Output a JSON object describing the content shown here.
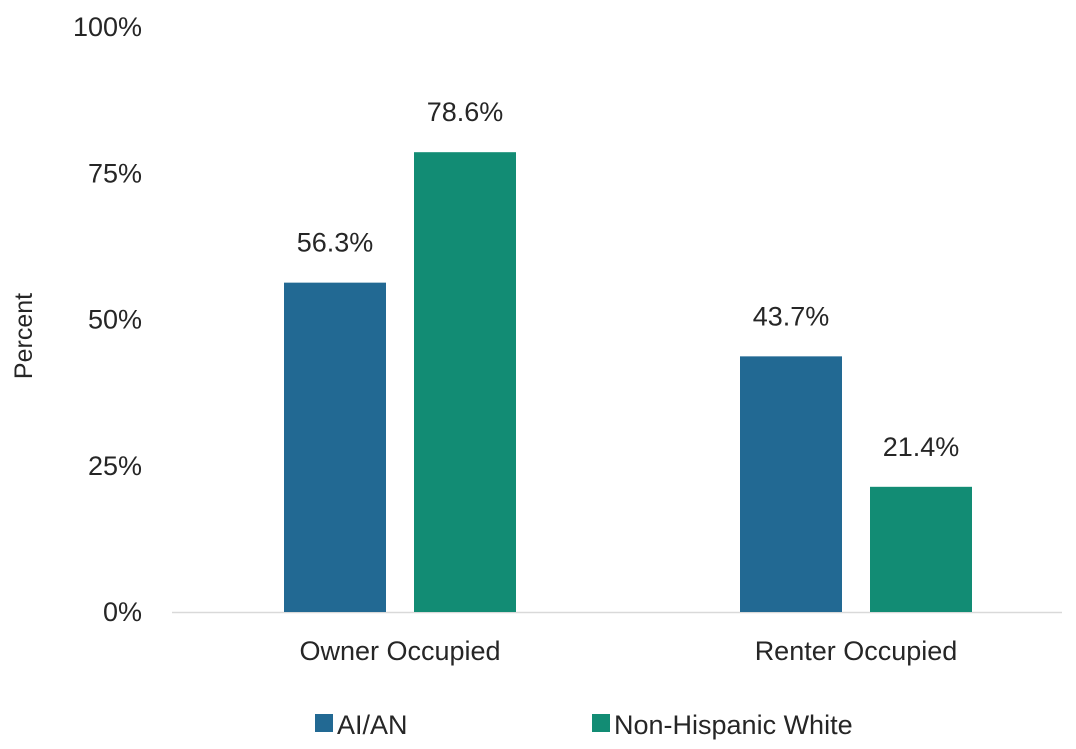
{
  "chart_data": {
    "type": "bar",
    "categories": [
      "Owner Occupied",
      "Renter Occupied"
    ],
    "series": [
      {
        "name": "AI/AN",
        "values": [
          56.3,
          43.7
        ],
        "labels": [
          "56.3%",
          "43.7%"
        ],
        "color": "#226993"
      },
      {
        "name": "Non-Hispanic White",
        "values": [
          78.6,
          21.4
        ],
        "labels": [
          "78.6%",
          "21.4%"
        ],
        "color": "#128C74"
      }
    ],
    "ylim": [
      0,
      100
    ],
    "yticks": [
      0,
      25,
      50,
      75,
      100
    ],
    "ytick_labels": [
      "0%",
      "25%",
      "50%",
      "75%",
      "100%"
    ],
    "ylabel": "Percent",
    "xlabel": "",
    "title": "",
    "grid": false,
    "legend_position": "bottom-center",
    "axis_color": "#d9d9d9"
  }
}
